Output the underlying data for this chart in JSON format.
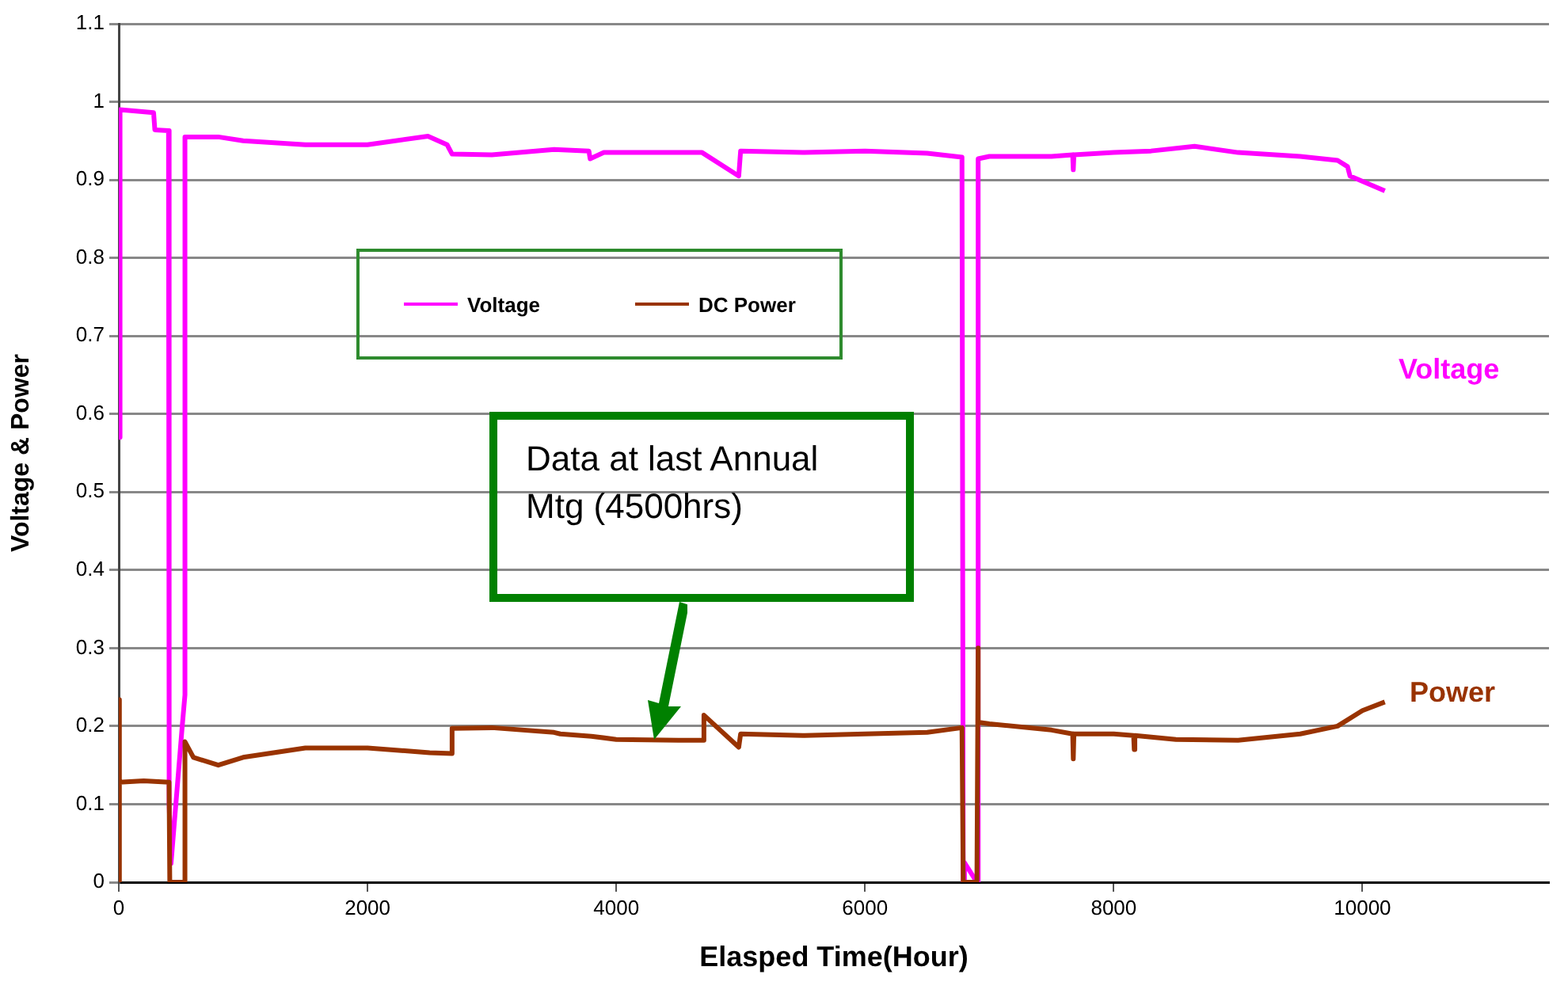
{
  "chart_data": {
    "type": "line",
    "xlabel": "Elasped Time(Hour)",
    "ylabel": "Voltage & Power",
    "xlim": [
      0,
      11500
    ],
    "xticks": [
      0,
      2000,
      4000,
      6000,
      8000,
      10000
    ],
    "ylim": [
      0,
      1.1
    ],
    "yticks": [
      0,
      0.1,
      0.2,
      0.3,
      0.4,
      0.5,
      0.6,
      0.7,
      0.8,
      0.9,
      1,
      1.1
    ],
    "grid": "y",
    "legend": "top left",
    "marker": "none",
    "line_style": "solid",
    "series": [
      {
        "name": "Voltage",
        "color": "#ff00ff",
        "x": [
          0,
          10,
          280,
          290,
          400,
          405,
          420,
          510,
          532,
          532,
          600,
          800,
          1000,
          1500,
          2000,
          2486,
          2640,
          2680,
          3000,
          3500,
          3780,
          3790,
          3900,
          4300,
          4690,
          4985,
          5000,
          5500,
          6000,
          6500,
          6780,
          6790,
          6800,
          6900,
          6910,
          6910,
          7000,
          7500,
          7670,
          7675,
          7680,
          8000,
          8300,
          8650,
          9000,
          9500,
          9800,
          9880,
          9900,
          10180
        ],
        "values": [
          0.57,
          0.99,
          0.986,
          0.964,
          0.963,
          0.1,
          0.024,
          0.2,
          0.24,
          0.955,
          0.955,
          0.955,
          0.95,
          0.945,
          0.945,
          0.956,
          0.945,
          0.933,
          0.932,
          0.939,
          0.937,
          0.927,
          0.935,
          0.935,
          0.935,
          0.905,
          0.937,
          0.935,
          0.937,
          0.934,
          0.929,
          0,
          0.025,
          0,
          0,
          0.927,
          0.93,
          0.93,
          0.932,
          0.913,
          0.932,
          0.935,
          0.937,
          0.943,
          0.935,
          0.93,
          0.925,
          0.917,
          0.905,
          0.886
        ]
      },
      {
        "name": "DC Power",
        "color": "#993300",
        "x": [
          0,
          0,
          10,
          200,
          404,
          410,
          420,
          532,
          532,
          600,
          800,
          1000,
          1500,
          2000,
          2500,
          2680,
          2680,
          3000,
          3500,
          3550,
          3800,
          4000,
          4500,
          4705,
          4705,
          4985,
          5000,
          5500,
          6000,
          6500,
          6780,
          6790,
          6900,
          6910,
          6910,
          7000,
          7500,
          7670,
          7675,
          7680,
          8000,
          8160,
          8165,
          8170,
          8500,
          9000,
          9500,
          9800,
          10000,
          10180
        ],
        "values": [
          0,
          0.234,
          0.128,
          0.13,
          0.128,
          0,
          0,
          0,
          0.18,
          0.16,
          0.15,
          0.16,
          0.172,
          0.172,
          0.166,
          0.165,
          0.197,
          0.198,
          0.192,
          0.19,
          0.187,
          0.183,
          0.182,
          0.182,
          0.214,
          0.173,
          0.19,
          0.188,
          0.19,
          0.192,
          0.198,
          0,
          0,
          0.3,
          0.205,
          0.203,
          0.195,
          0.19,
          0.158,
          0.19,
          0.19,
          0.188,
          0.17,
          0.188,
          0.183,
          0.182,
          0.19,
          0.2,
          0.22,
          0.231
        ]
      }
    ],
    "annotations": [
      "Voltage",
      "Power",
      "Data at last Annual Mtg (4500hrs)"
    ]
  }
}
